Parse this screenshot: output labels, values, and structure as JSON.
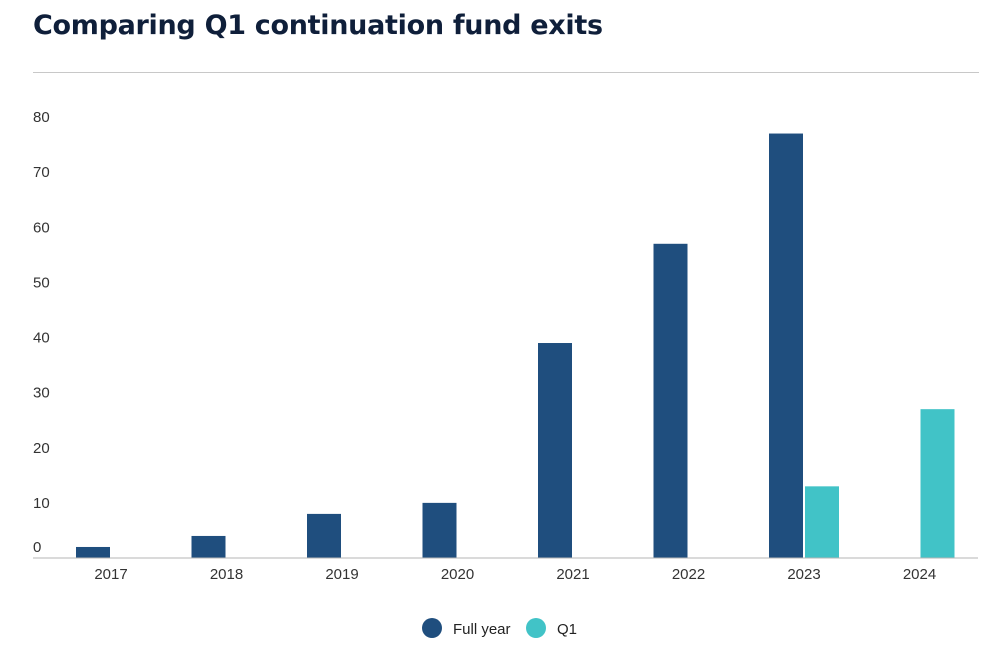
{
  "chart_data": {
    "type": "bar",
    "title": "Comparing Q1 continuation fund exits",
    "categories": [
      "2017",
      "2018",
      "2019",
      "2020",
      "2021",
      "2022",
      "2023",
      "2024"
    ],
    "series": [
      {
        "name": "Full year",
        "color": "#1f4e7e",
        "values": [
          2,
          4,
          8,
          10,
          39,
          57,
          77,
          null
        ]
      },
      {
        "name": "Q1",
        "color": "#41c3c7",
        "values": [
          null,
          null,
          null,
          null,
          null,
          null,
          13,
          27
        ]
      }
    ],
    "ylim": [
      0,
      80
    ],
    "yticks": [
      0,
      10,
      20,
      30,
      40,
      50,
      60,
      70,
      80
    ],
    "grid": false,
    "legend": "bottom-center"
  }
}
